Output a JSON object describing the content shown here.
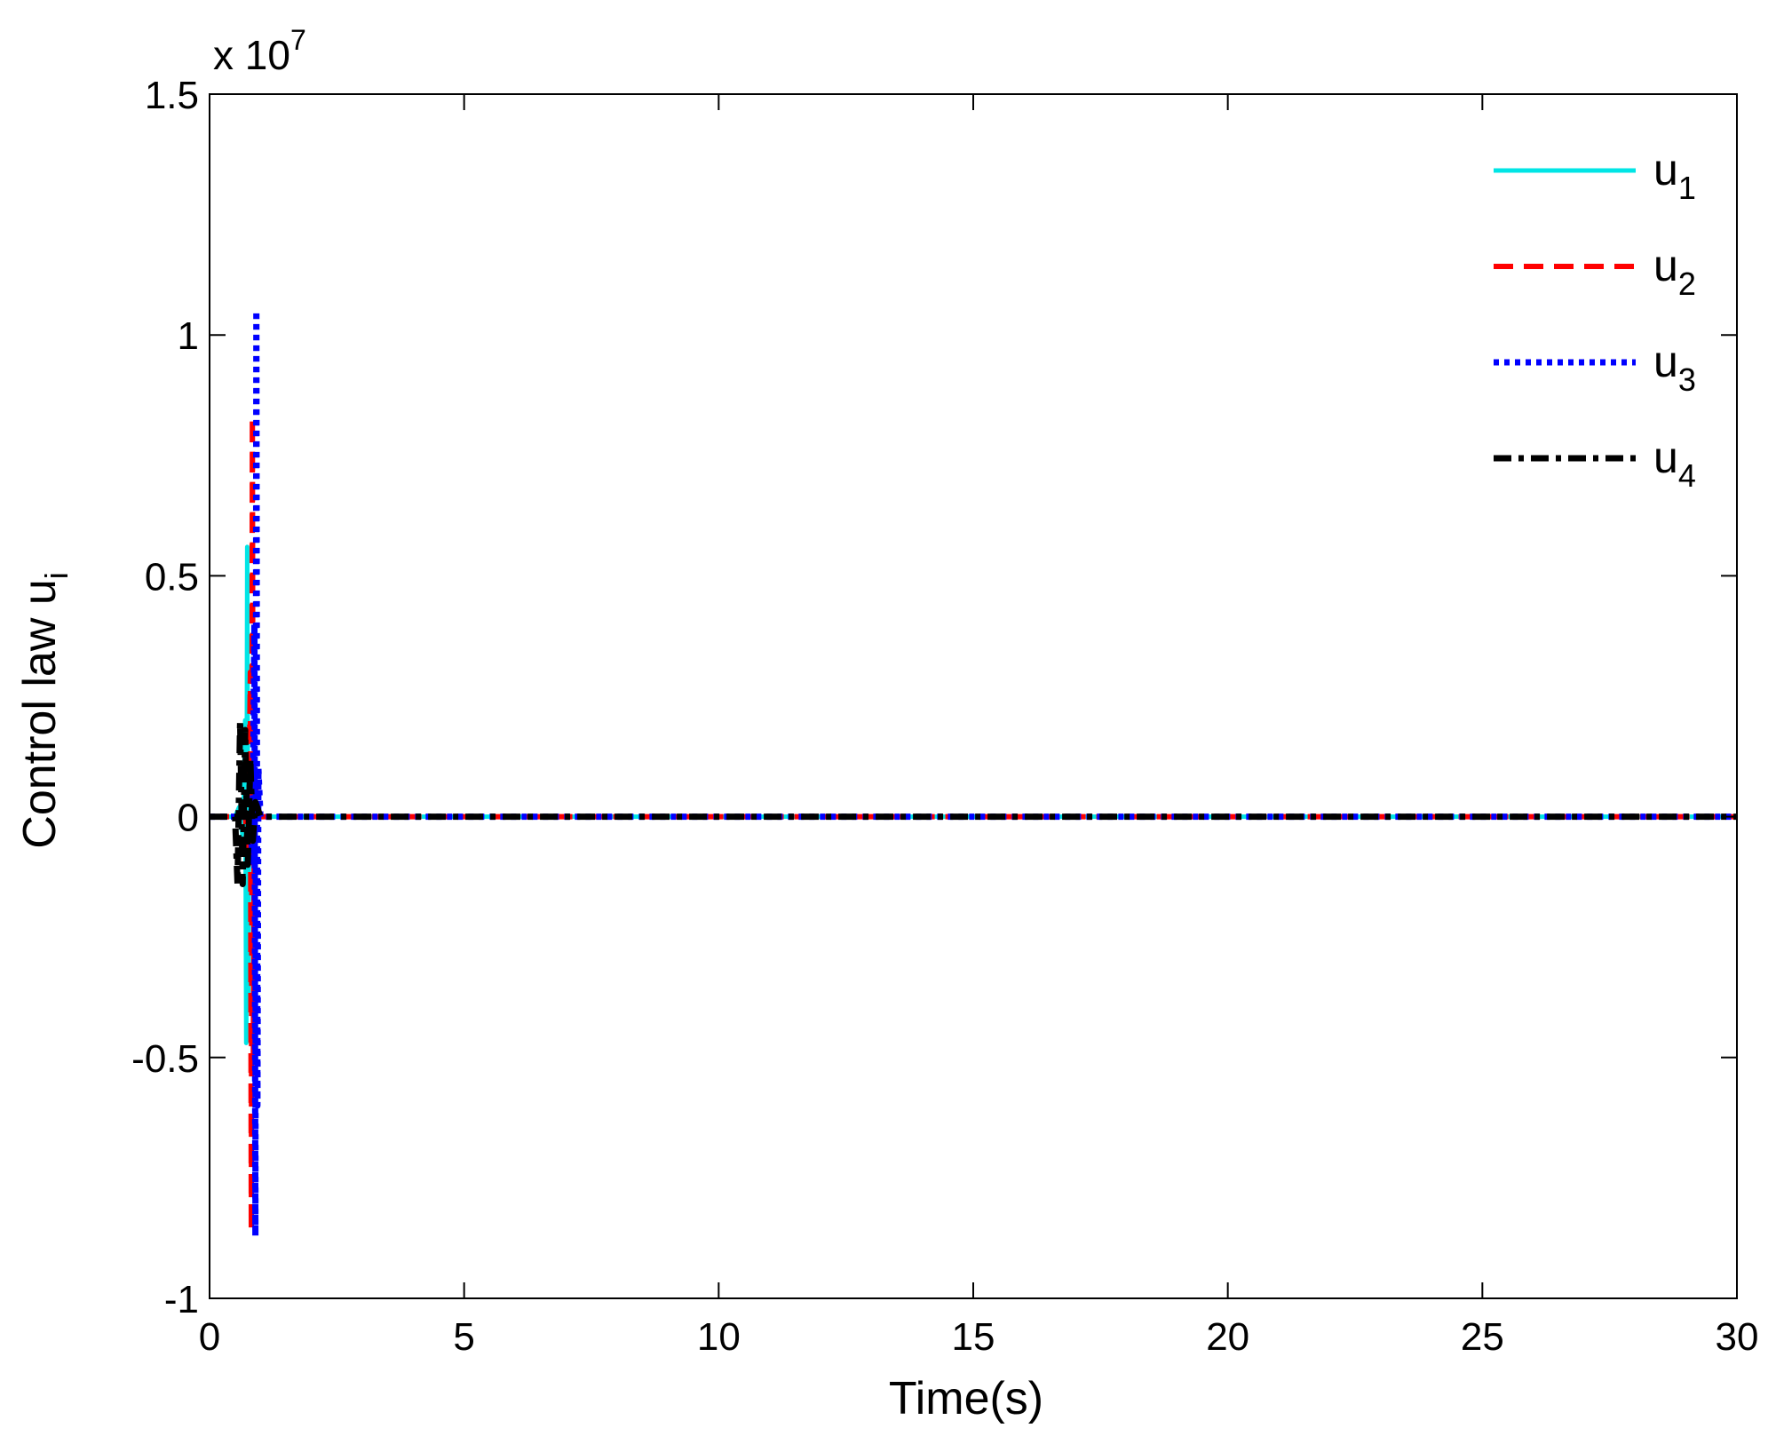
{
  "chart_data": {
    "type": "line",
    "xlabel": "Time(s)",
    "ylabel": "Control law u",
    "ylabel_subscript": "i",
    "y_multiplier_prefix": "x 10",
    "y_multiplier_exponent": "7",
    "xlim": [
      0,
      30
    ],
    "ylim": [
      -1,
      1.5
    ],
    "xticks": [
      0,
      5,
      10,
      15,
      20,
      25,
      30
    ],
    "xtick_labels": [
      "0",
      "5",
      "10",
      "15",
      "20",
      "25",
      "30"
    ],
    "yticks": [
      -1,
      -0.5,
      0,
      0.5,
      1,
      1.5
    ],
    "ytick_labels": [
      "-1",
      "-0.5",
      "0",
      "0.5",
      "1",
      "1.5"
    ],
    "grid": false,
    "legend_position": "top-right",
    "series": [
      {
        "name": "u",
        "subscript": "1",
        "color": "#00e5e5",
        "style": "solid",
        "x": [
          0,
          0.5,
          0.58,
          0.66,
          0.7,
          0.72,
          0.74,
          0.76,
          0.78,
          0.8,
          0.85,
          1.0,
          30
        ],
        "y": [
          0,
          0,
          0.02,
          -0.05,
          0.2,
          -0.47,
          0.56,
          -0.4,
          0.1,
          0,
          0,
          0,
          0
        ]
      },
      {
        "name": "u",
        "subscript": "2",
        "color": "#ff0000",
        "style": "dashed",
        "x": [
          0,
          0.6,
          0.7,
          0.76,
          0.8,
          0.82,
          0.84,
          0.86,
          0.88,
          0.95,
          30
        ],
        "y": [
          0,
          0,
          0.01,
          -0.1,
          0.3,
          -0.86,
          0.83,
          -0.5,
          0.1,
          0,
          0
        ]
      },
      {
        "name": "u",
        "subscript": "3",
        "color": "#0000ff",
        "style": "dotted",
        "x": [
          0,
          0.7,
          0.8,
          0.84,
          0.88,
          0.9,
          0.92,
          0.94,
          0.96,
          1.0,
          30
        ],
        "y": [
          0,
          0,
          0.01,
          -0.1,
          0.4,
          -0.87,
          1.05,
          -0.6,
          0.1,
          0,
          0
        ]
      },
      {
        "name": "u",
        "subscript": "4",
        "color": "#000000",
        "style": "dashdot",
        "x": [
          0,
          0.5,
          0.55,
          0.6,
          0.65,
          0.7,
          0.75,
          0.8,
          0.85,
          0.9,
          1.0,
          30
        ],
        "y": [
          0,
          0,
          -0.14,
          0.2,
          -0.14,
          0.18,
          -0.1,
          0.12,
          -0.05,
          0.03,
          0,
          0
        ]
      }
    ]
  }
}
